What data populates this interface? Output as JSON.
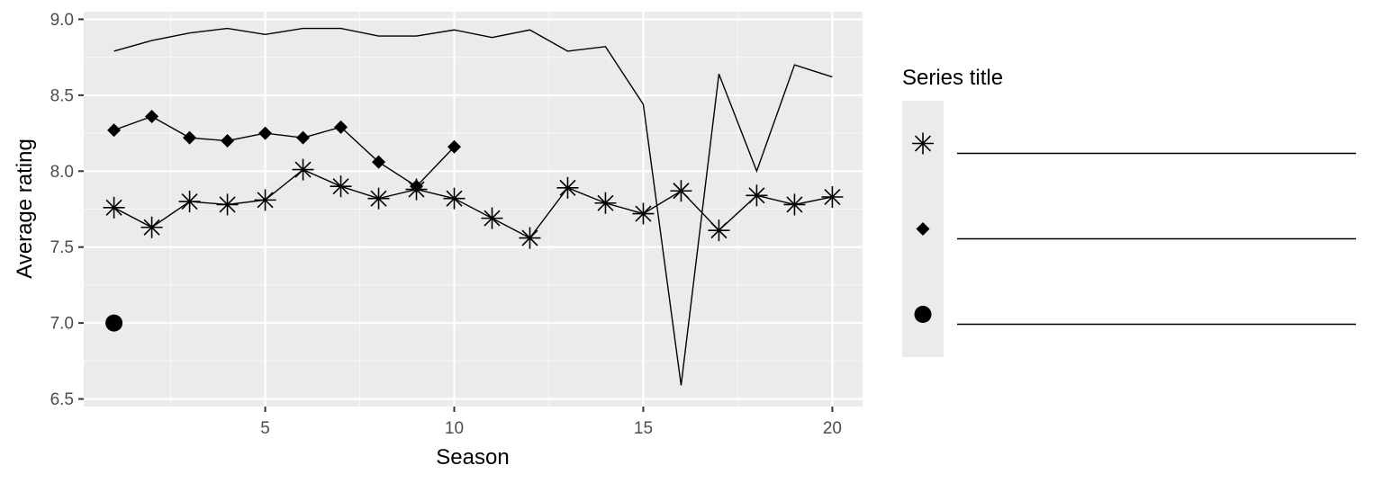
{
  "chart_data": {
    "type": "line",
    "xlabel": "Season",
    "ylabel": "Average rating",
    "xlim": [
      0.2,
      20.8
    ],
    "ylim": [
      6.45,
      9.05
    ],
    "x_ticks": [
      5,
      10,
      15,
      20
    ],
    "x_tick_labels": [
      "5",
      "10",
      "15",
      "20"
    ],
    "y_ticks": [
      6.5,
      7.0,
      7.5,
      8.0,
      8.5,
      9.0
    ],
    "y_tick_labels": [
      "6.5",
      "7.0",
      "7.5",
      "8.0",
      "8.5",
      "9.0"
    ],
    "grid": true,
    "legend": {
      "title": "Series title",
      "placement": "right",
      "entries": [
        {
          "shape": "asterisk",
          "label": ""
        },
        {
          "shape": "diamond",
          "label": ""
        },
        {
          "shape": "circle",
          "label": ""
        }
      ]
    },
    "series": [
      {
        "shape": "none",
        "line": true,
        "x": [
          1,
          2,
          3,
          4,
          5,
          6,
          7,
          8,
          9,
          10,
          11,
          12,
          13,
          14,
          15,
          16,
          17,
          18,
          19,
          20
        ],
        "y": [
          8.79,
          8.86,
          8.91,
          8.94,
          8.9,
          8.94,
          8.94,
          8.89,
          8.89,
          8.93,
          8.88,
          8.93,
          8.79,
          8.82,
          8.44,
          6.59,
          8.64,
          8.0,
          8.7,
          8.62
        ]
      },
      {
        "shape": "diamond",
        "line": true,
        "x": [
          1,
          2,
          3,
          4,
          5,
          6,
          7,
          8,
          9,
          10
        ],
        "y": [
          8.27,
          8.36,
          8.22,
          8.2,
          8.25,
          8.22,
          8.29,
          8.06,
          7.9,
          8.16
        ]
      },
      {
        "shape": "asterisk",
        "line": true,
        "x": [
          1,
          2,
          3,
          4,
          5,
          6,
          7,
          8,
          9,
          10,
          11,
          12,
          13,
          14,
          15,
          16,
          17,
          18,
          19,
          20
        ],
        "y": [
          7.76,
          7.63,
          7.8,
          7.78,
          7.81,
          8.01,
          7.9,
          7.82,
          7.88,
          7.82,
          7.69,
          7.56,
          7.89,
          7.79,
          7.72,
          7.87,
          7.61,
          7.84,
          7.78,
          7.83
        ]
      },
      {
        "shape": "circle",
        "line": false,
        "x": [
          1
        ],
        "y": [
          7.0
        ]
      }
    ]
  }
}
